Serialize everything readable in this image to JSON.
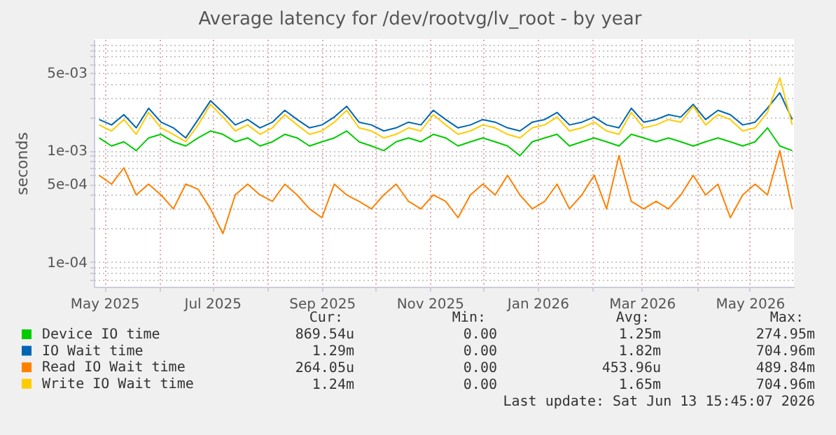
{
  "chart_data": {
    "type": "line",
    "title": "Average latency for /dev/rootvg/lv_root - by year",
    "ylabel": "seconds",
    "log": "y",
    "grid": true,
    "legend": "bottom",
    "marker": "none",
    "line_style": "solid",
    "x": [
      "2025-04-28",
      "2025-05-05",
      "2025-05-12",
      "2025-05-19",
      "2025-05-26",
      "2025-06-02",
      "2025-06-09",
      "2025-06-16",
      "2025-06-23",
      "2025-06-30",
      "2025-07-07",
      "2025-07-14",
      "2025-07-21",
      "2025-07-28",
      "2025-08-04",
      "2025-08-11",
      "2025-08-18",
      "2025-08-25",
      "2025-09-01",
      "2025-09-08",
      "2025-09-15",
      "2025-09-22",
      "2025-09-29",
      "2025-10-06",
      "2025-10-13",
      "2025-10-20",
      "2025-10-27",
      "2025-11-03",
      "2025-11-10",
      "2025-11-17",
      "2025-11-24",
      "2025-12-01",
      "2025-12-08",
      "2025-12-15",
      "2025-12-22",
      "2025-12-29",
      "2026-01-05",
      "2026-01-12",
      "2026-01-19",
      "2026-01-26",
      "2026-02-02",
      "2026-02-09",
      "2026-02-16",
      "2026-02-23",
      "2026-03-02",
      "2026-03-09",
      "2026-03-16",
      "2026-03-23",
      "2026-03-30",
      "2026-04-06",
      "2026-04-13",
      "2026-04-20",
      "2026-04-27",
      "2026-05-04",
      "2026-05-11",
      "2026-05-18",
      "2026-05-25"
    ],
    "xlim": [
      "2025-04-25",
      "2026-05-26"
    ],
    "xticks": [
      {
        "value": "2025-05-01",
        "label": "May 2025"
      },
      {
        "value": "2025-06-01",
        "label": null
      },
      {
        "value": "2025-07-01",
        "label": "Jul 2025"
      },
      {
        "value": "2025-08-01",
        "label": null
      },
      {
        "value": "2025-09-01",
        "label": "Sep 2025"
      },
      {
        "value": "2025-10-01",
        "label": null
      },
      {
        "value": "2025-11-01",
        "label": "Nov 2025"
      },
      {
        "value": "2025-12-01",
        "label": null
      },
      {
        "value": "2026-01-01",
        "label": "Jan 2026"
      },
      {
        "value": "2026-02-01",
        "label": null
      },
      {
        "value": "2026-03-01",
        "label": "Mar 2026"
      },
      {
        "value": "2026-04-01",
        "label": null
      },
      {
        "value": "2026-05-01",
        "label": "May 2026"
      }
    ],
    "ylim": [
      6e-05,
      0.01
    ],
    "yticks": [
      {
        "value": 7e-05,
        "label": null
      },
      {
        "value": 8e-05,
        "label": null
      },
      {
        "value": 9e-05,
        "label": null
      },
      {
        "value": 0.0001,
        "label": "1e-04"
      },
      {
        "value": 0.0002,
        "label": null
      },
      {
        "value": 0.0003,
        "label": null
      },
      {
        "value": 0.0004,
        "label": null
      },
      {
        "value": 0.0005,
        "label": "5e-04"
      },
      {
        "value": 0.0006,
        "label": null
      },
      {
        "value": 0.0007,
        "label": null
      },
      {
        "value": 0.0008,
        "label": null
      },
      {
        "value": 0.0009,
        "label": null
      },
      {
        "value": 0.001,
        "label": "1e-03"
      },
      {
        "value": 0.002,
        "label": null
      },
      {
        "value": 0.003,
        "label": null
      },
      {
        "value": 0.004,
        "label": null
      },
      {
        "value": 0.005,
        "label": "5e-03"
      },
      {
        "value": 0.006,
        "label": null
      },
      {
        "value": 0.007,
        "label": null
      },
      {
        "value": 0.008,
        "label": null
      },
      {
        "value": 0.009,
        "label": null
      }
    ],
    "series": [
      {
        "name": "Device IO time",
        "color": "#00cc00",
        "values": [
          0.0013,
          0.0011,
          0.0012,
          0.001,
          0.0013,
          0.0014,
          0.0012,
          0.0011,
          0.0013,
          0.0015,
          0.0014,
          0.0012,
          0.0013,
          0.0011,
          0.0012,
          0.0014,
          0.0013,
          0.0011,
          0.0012,
          0.0013,
          0.0015,
          0.0012,
          0.0011,
          0.001,
          0.0012,
          0.0013,
          0.0012,
          0.0014,
          0.0013,
          0.0011,
          0.0012,
          0.0013,
          0.0012,
          0.0011,
          0.0009,
          0.0012,
          0.0013,
          0.0014,
          0.0011,
          0.0012,
          0.0013,
          0.0012,
          0.0011,
          0.0014,
          0.0013,
          0.0012,
          0.0013,
          0.0012,
          0.0011,
          0.0012,
          0.0013,
          0.0012,
          0.0011,
          0.0012,
          0.0016,
          0.0011,
          0.001
        ]
      },
      {
        "name": "IO Wait time",
        "color": "#0066b3",
        "values": [
          0.0019,
          0.0017,
          0.0021,
          0.0016,
          0.0024,
          0.0018,
          0.0016,
          0.0013,
          0.0019,
          0.0028,
          0.0022,
          0.0017,
          0.0019,
          0.0016,
          0.0018,
          0.0023,
          0.0019,
          0.0016,
          0.0017,
          0.002,
          0.0025,
          0.0018,
          0.0017,
          0.0015,
          0.0016,
          0.0018,
          0.0017,
          0.0023,
          0.0019,
          0.0016,
          0.0017,
          0.0019,
          0.0018,
          0.0016,
          0.0015,
          0.0018,
          0.0019,
          0.0022,
          0.0017,
          0.0018,
          0.002,
          0.0017,
          0.0016,
          0.0024,
          0.0018,
          0.0019,
          0.0021,
          0.002,
          0.0026,
          0.0019,
          0.0023,
          0.0021,
          0.0017,
          0.0018,
          0.0024,
          0.0033,
          0.0019
        ]
      },
      {
        "name": "Read IO Wait time",
        "color": "#ff8000",
        "values": [
          0.0006,
          0.0005,
          0.0007,
          0.0004,
          0.0005,
          0.0004,
          0.0003,
          0.0005,
          0.00045,
          0.0003,
          0.00018,
          0.0004,
          0.0005,
          0.0004,
          0.00035,
          0.0005,
          0.0004,
          0.0003,
          0.00025,
          0.0005,
          0.0004,
          0.00035,
          0.0003,
          0.0004,
          0.0005,
          0.00035,
          0.0003,
          0.0004,
          0.00035,
          0.00025,
          0.0004,
          0.0005,
          0.0004,
          0.0006,
          0.0004,
          0.0003,
          0.00035,
          0.0005,
          0.0003,
          0.0004,
          0.0006,
          0.0003,
          0.0009,
          0.00035,
          0.0003,
          0.00035,
          0.0003,
          0.0004,
          0.0006,
          0.0004,
          0.0005,
          0.00025,
          0.0004,
          0.0005,
          0.0004,
          0.001,
          0.0003
        ]
      },
      {
        "name": "Write IO Wait time",
        "color": "#ffcc00",
        "values": [
          0.0017,
          0.0015,
          0.0019,
          0.0014,
          0.0022,
          0.0016,
          0.0014,
          0.0012,
          0.0017,
          0.0026,
          0.002,
          0.0015,
          0.0017,
          0.0014,
          0.0016,
          0.0021,
          0.0017,
          0.0014,
          0.0015,
          0.0018,
          0.0023,
          0.0016,
          0.0015,
          0.0013,
          0.0014,
          0.0016,
          0.0015,
          0.0021,
          0.0017,
          0.0014,
          0.0015,
          0.0017,
          0.0016,
          0.0014,
          0.0013,
          0.0016,
          0.0017,
          0.002,
          0.0015,
          0.0016,
          0.0018,
          0.0015,
          0.0014,
          0.0022,
          0.0016,
          0.0017,
          0.0019,
          0.0018,
          0.0025,
          0.0017,
          0.0021,
          0.0019,
          0.0015,
          0.0016,
          0.0022,
          0.0045,
          0.0017
        ]
      }
    ],
    "annotations": [
      "Cur:",
      "Min:",
      "Avg:",
      "Max:",
      "869.54u",
      "0.00",
      "1.25m",
      "274.95m",
      "1.29m",
      "0.00",
      "1.82m",
      "704.96m",
      "264.05u",
      "0.00",
      "453.96u",
      "489.84m",
      "1.24m",
      "0.00",
      "1.65m",
      "704.96m",
      "Last update: Sat Jun 13 15:45:07 2026"
    ]
  }
}
